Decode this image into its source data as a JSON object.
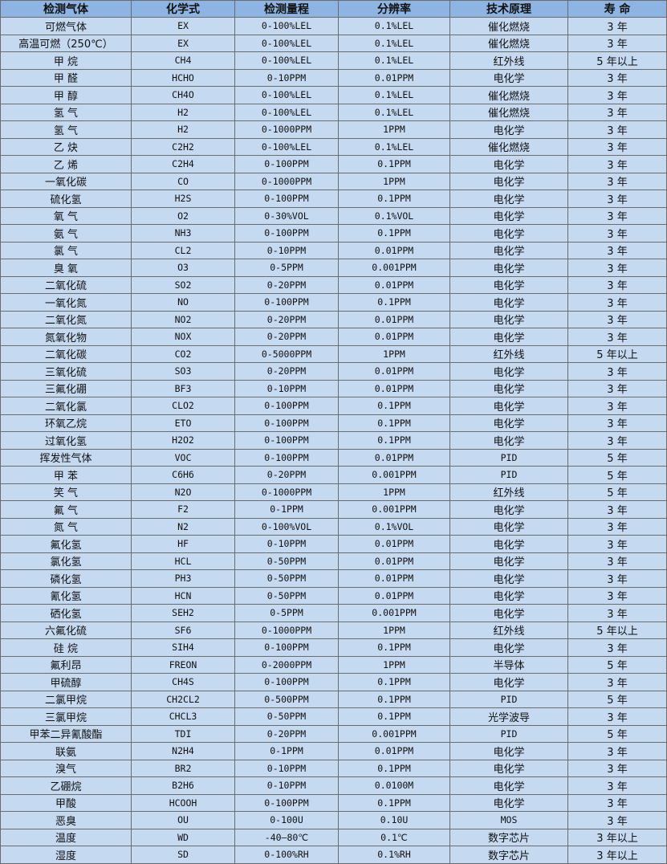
{
  "table": {
    "headers": [
      "检测气体",
      "化学式",
      "检测量程",
      "分辨率",
      "技术原理",
      "寿 命"
    ],
    "rows": [
      [
        "可燃气体",
        "EX",
        "0-100%LEL",
        "0.1%LEL",
        "催化燃烧",
        "3 年"
      ],
      [
        "高温可燃（250℃）",
        "EX",
        "0-100%LEL",
        "0.1%LEL",
        "催化燃烧",
        "3 年"
      ],
      [
        "甲 烷",
        "CH4",
        "0-100%LEL",
        "0.1%LEL",
        "红外线",
        "5 年以上"
      ],
      [
        "甲 醛",
        "HCHO",
        "0-10PPM",
        "0.01PPM",
        "电化学",
        "3 年"
      ],
      [
        "甲 醇",
        "CH4O",
        "0-100%LEL",
        "0.1%LEL",
        "催化燃烧",
        "3 年"
      ],
      [
        "氢 气",
        "H2",
        "0-100%LEL",
        "0.1%LEL",
        "催化燃烧",
        "3 年"
      ],
      [
        "氢 气",
        "H2",
        "0-1000PPM",
        "1PPM",
        "电化学",
        "3 年"
      ],
      [
        "乙 炔",
        "C2H2",
        "0-100%LEL",
        "0.1%LEL",
        "催化燃烧",
        "3 年"
      ],
      [
        "乙 烯",
        "C2H4",
        "0-100PPM",
        "0.1PPM",
        "电化学",
        "3 年"
      ],
      [
        "一氧化碳",
        "CO",
        "0-1000PPM",
        "1PPM",
        "电化学",
        "3 年"
      ],
      [
        "硫化氢",
        "H2S",
        "0-100PPM",
        "0.1PPM",
        "电化学",
        "3 年"
      ],
      [
        "氧 气",
        "O2",
        "0-30%VOL",
        "0.1%VOL",
        "电化学",
        "3 年"
      ],
      [
        "氨 气",
        "NH3",
        "0-100PPM",
        "0.1PPM",
        "电化学",
        "3 年"
      ],
      [
        "氯 气",
        "CL2",
        "0-10PPM",
        "0.01PPM",
        "电化学",
        "3 年"
      ],
      [
        "臭 氧",
        "O3",
        "0-5PPM",
        "0.001PPM",
        "电化学",
        "3 年"
      ],
      [
        "二氧化硫",
        "SO2",
        "0-20PPM",
        "0.01PPM",
        "电化学",
        "3 年"
      ],
      [
        "一氧化氮",
        "NO",
        "0-100PPM",
        "0.1PPM",
        "电化学",
        "3 年"
      ],
      [
        "二氧化氮",
        "NO2",
        "0-20PPM",
        "0.01PPM",
        "电化学",
        "3 年"
      ],
      [
        "氮氧化物",
        "NOX",
        "0-20PPM",
        "0.01PPM",
        "电化学",
        "3 年"
      ],
      [
        "二氧化碳",
        "CO2",
        "0-5000PPM",
        "1PPM",
        "红外线",
        "5 年以上"
      ],
      [
        "三氧化硫",
        "SO3",
        "0-20PPM",
        "0.01PPM",
        "电化学",
        "3 年"
      ],
      [
        "三氟化硼",
        "BF3",
        "0-10PPM",
        "0.01PPM",
        "电化学",
        "3 年"
      ],
      [
        "二氧化氯",
        "CLO2",
        "0-100PPM",
        "0.1PPM",
        "电化学",
        "3 年"
      ],
      [
        "环氧乙烷",
        "ETO",
        "0-100PPM",
        "0.1PPM",
        "电化学",
        "3 年"
      ],
      [
        "过氧化氢",
        "H2O2",
        "0-100PPM",
        "0.1PPM",
        "电化学",
        "3 年"
      ],
      [
        "挥发性气体",
        "VOC",
        "0-100PPM",
        "0.01PPM",
        "PID",
        "5 年"
      ],
      [
        "甲 苯",
        "C6H6",
        "0-20PPM",
        "0.001PPM",
        "PID",
        "5 年"
      ],
      [
        "笑 气",
        "N2O",
        "0-1000PPM",
        "1PPM",
        "红外线",
        "5 年"
      ],
      [
        "氟 气",
        "F2",
        "0-1PPM",
        "0.001PPM",
        "电化学",
        "3 年"
      ],
      [
        "氮 气",
        "N2",
        "0-100%VOL",
        "0.1%VOL",
        "电化学",
        "3 年"
      ],
      [
        "氟化氢",
        "HF",
        "0-10PPM",
        "0.01PPM",
        "电化学",
        "3 年"
      ],
      [
        "氯化氢",
        "HCL",
        "0-50PPM",
        "0.01PPM",
        "电化学",
        "3 年"
      ],
      [
        "磷化氢",
        "PH3",
        "0-50PPM",
        "0.01PPM",
        "电化学",
        "3 年"
      ],
      [
        "氰化氢",
        "HCN",
        "0-50PPM",
        "0.01PPM",
        "电化学",
        "3 年"
      ],
      [
        "硒化氢",
        "SEH2",
        "0-5PPM",
        "0.001PPM",
        "电化学",
        "3 年"
      ],
      [
        "六氟化硫",
        "SF6",
        "0-1000PPM",
        "1PPM",
        "红外线",
        "5 年以上"
      ],
      [
        "硅 烷",
        "SIH4",
        "0-100PPM",
        "0.1PPM",
        "电化学",
        "3 年"
      ],
      [
        "氟利昂",
        "FREON",
        "0-2000PPM",
        "1PPM",
        "半导体",
        "5 年"
      ],
      [
        "甲硫醇",
        "CH4S",
        "0-100PPM",
        "0.1PPM",
        "电化学",
        "3 年"
      ],
      [
        "二氯甲烷",
        "CH2CL2",
        "0-500PPM",
        "0.1PPM",
        "PID",
        "5 年"
      ],
      [
        "三氯甲烷",
        "CHCL3",
        "0-50PPM",
        "0.1PPM",
        "光学波导",
        "3 年"
      ],
      [
        "甲苯二异氰酸酯",
        "TDI",
        "0-20PPM",
        "0.001PPM",
        "PID",
        "5 年"
      ],
      [
        "联氨",
        "N2H4",
        "0-1PPM",
        "0.01PPM",
        "电化学",
        "3 年"
      ],
      [
        "溴气",
        "BR2",
        "0-10PPM",
        "0.1PPM",
        "电化学",
        "3 年"
      ],
      [
        "乙硼烷",
        "B2H6",
        "0-10PPM",
        "0.0100M",
        "电化学",
        "3 年"
      ],
      [
        "甲酸",
        "HCOOH",
        "0-100PPM",
        "0.1PPM",
        "电化学",
        "3 年"
      ],
      [
        "恶臭",
        "OU",
        "0-100U",
        "0.10U",
        "MOS",
        "3 年"
      ],
      [
        "温度",
        "WD",
        "-40—80℃",
        "0.1℃",
        "数字芯片",
        "3 年以上"
      ],
      [
        "湿度",
        "SD",
        "0-100%RH",
        "0.1%RH",
        "数字芯片",
        "3 年以上"
      ]
    ]
  },
  "colors": {
    "header_bg": "#8db4e2",
    "row_bg": "#c5d9f1",
    "border": "#6b6b6b"
  }
}
